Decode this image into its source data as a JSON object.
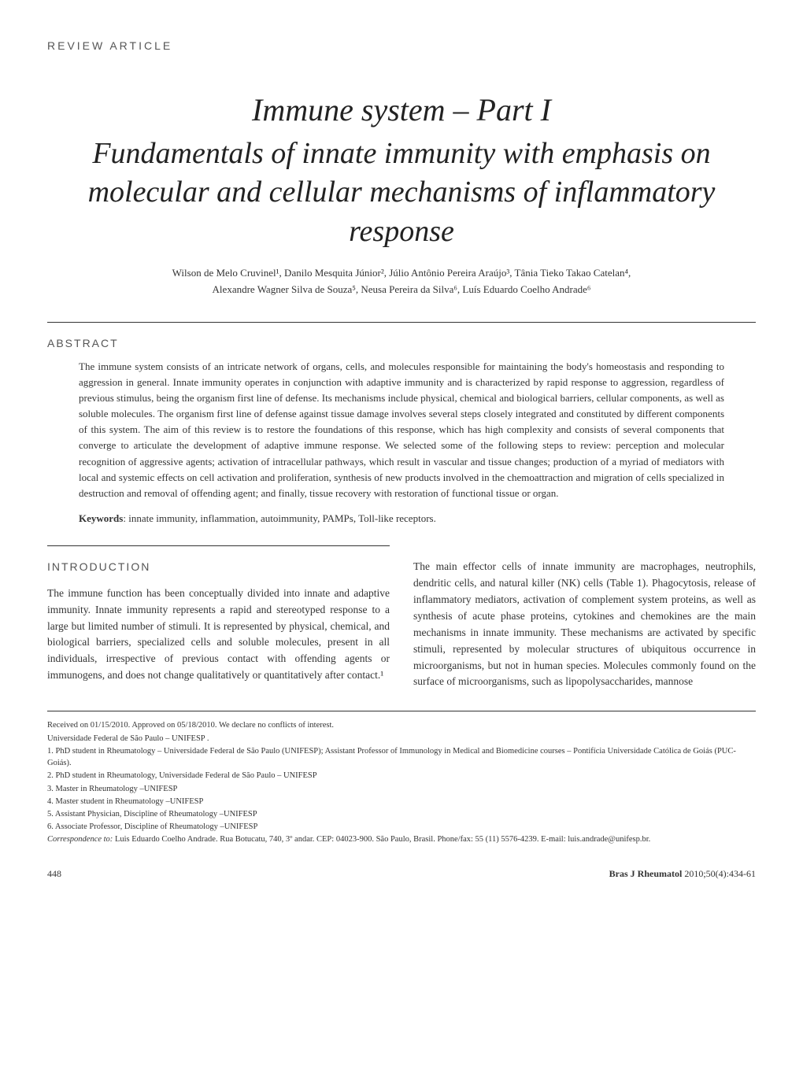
{
  "section_label": "REVIEW ARTICLE",
  "title": {
    "main": "Immune system – Part I",
    "sub": "Fundamentals of innate immunity with emphasis on molecular and cellular mechanisms of inflammatory response"
  },
  "authors_line1": "Wilson de Melo Cruvinel¹, Danilo Mesquita Júnior², Júlio Antônio Pereira Araújo³, Tânia Tieko Takao Catelan⁴,",
  "authors_line2": "Alexandre Wagner Silva de Souza⁵, Neusa Pereira da Silva⁶, Luís Eduardo Coelho Andrade⁶",
  "abstract": {
    "heading": "ABSTRACT",
    "body": "The immune system consists of an intricate network of organs, cells, and molecules responsible for maintaining the body's homeostasis and responding to aggression in general. Innate immunity operates in conjunction with adaptive immunity and is characterized by rapid response to aggression, regardless of previous stimulus, being the organism first line of defense. Its mechanisms include physical, chemical and biological barriers, cellular components, as well as soluble molecules. The organism first line of defense against tissue damage involves several steps closely integrated and constituted by different components of this system. The aim of this review is to restore the foundations of this response, which has high complexity and consists of several components that converge to articulate the development of adaptive immune response. We selected some of the following steps to review: perception and molecular recognition of aggressive agents; activation of intracellular pathways, which result in vascular and tissue changes; production of a myriad of mediators with local and systemic effects on cell activation and proliferation, synthesis of new products involved in the chemoattraction and migration of  cells specialized in destruction and removal of offending agent; and finally,  tissue recovery with restoration of functional tissue or organ.",
    "keywords_label": "Keywords",
    "keywords": ": innate immunity, inflammation, autoimmunity, PAMPs, Toll-like receptors."
  },
  "introduction": {
    "heading": "INTRODUCTION",
    "col1": "The immune function has been conceptually divided into innate and adaptive immunity. Innate immunity represents a rapid and stereotyped response to a large but limited number of stimuli. It is represented by physical, chemical, and biological barriers, specialized cells and soluble molecules, present in all individuals, irrespective of previous contact with offending agents or immunogens, and does not change qualitatively or quantitatively after contact.¹",
    "col2": "The main effector cells of innate immunity are macrophages, neutrophils, dendritic cells, and natural killer (NK) cells (Table 1). Phagocytosis, release of inflammatory mediators, activation of complement system proteins, as well as synthesis of acute phase proteins, cytokines and chemokines are the main mechanisms in innate immunity. These mechanisms are activated by specific stimuli, represented by molecular structures of ubiquitous occurrence in microorganisms, but not in human species. Molecules commonly found on the surface of microorganisms, such as lipopolysaccharides, mannose"
  },
  "footnotes": {
    "received": "Received on 01/15/2010. Approved on 05/18/2010. We declare no conflicts of interest.",
    "affil_main": "Universidade Federal de São Paulo – UNIFESP .",
    "a1": "1. PhD student in Rheumatology – Universidade Federal de São Paulo (UNIFESP); Assistant Professor of Immunology in Medical and Biomedicine courses – Pontifícia Universidade Católica de Goiás (PUC-Goiás).",
    "a2": "2. PhD student in Rheumatology, Universidade Federal de São Paulo – UNIFESP",
    "a3": "3. Master in Rheumatology –UNIFESP",
    "a4": "4. Master student in Rheumatology –UNIFESP",
    "a5": "5. Assistant Physician, Discipline of Rheumatology –UNIFESP",
    "a6": "6. Associate Professor, Discipline of Rheumatology –UNIFESP",
    "corr_label": "Correspondence to: ",
    "corr": "Luis Eduardo Coelho Andrade. Rua Botucatu, 740, 3º andar. CEP: 04023-900. São Paulo, Brasil. Phone/fax: 55 (11) 5576-4239. E-mail: luis.andrade@unifesp.br."
  },
  "footer": {
    "page": "448",
    "journal_name": "Bras J Rheumatol",
    "journal_issue": " 2010;50(4):434-61"
  },
  "style": {
    "text_color": "#333333",
    "heading_color": "#555555",
    "title_color": "#222222",
    "background": "#ffffff",
    "rule_color": "#333333",
    "title_main_fontsize": 40,
    "title_sub_fontsize": 38,
    "abstract_body_fontsize": 13,
    "col_fontsize": 13.5,
    "footnote_fontsize": 10.5
  }
}
